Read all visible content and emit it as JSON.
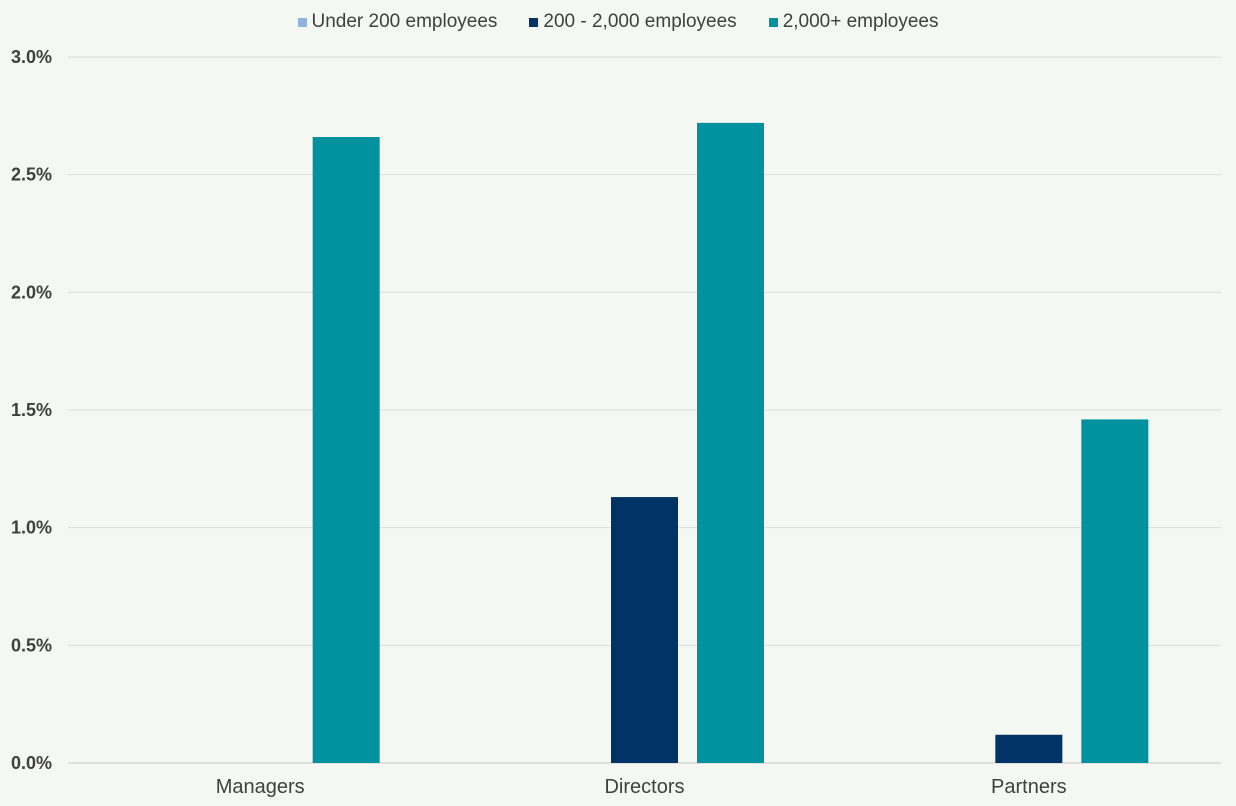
{
  "chart_data": {
    "type": "bar",
    "categories": [
      "Managers",
      "Directors",
      "Partners"
    ],
    "series": [
      {
        "name": "Under 200 employees",
        "values": [
          0,
          0,
          0
        ],
        "color": "#8fb3dc"
      },
      {
        "name": "200 - 2,000 employees",
        "values": [
          0,
          1.13,
          0.12
        ],
        "color": "#003366"
      },
      {
        "name": "2,000+ employees",
        "values": [
          2.66,
          2.72,
          1.46
        ],
        "color": "#00929f"
      }
    ],
    "y_ticks": [
      "0.0%",
      "0.5%",
      "1.0%",
      "1.5%",
      "2.0%",
      "2.5%",
      "3.0%"
    ],
    "ylim": [
      0,
      3.0
    ],
    "unit": "%",
    "grid": true,
    "legend_position": "top-center"
  }
}
